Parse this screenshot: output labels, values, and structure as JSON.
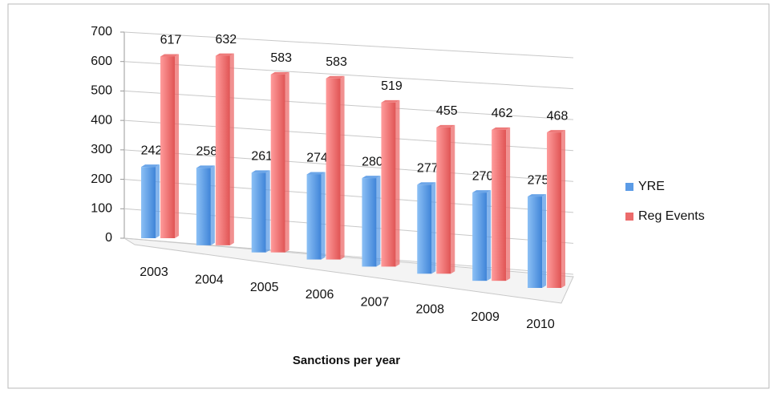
{
  "chart_data": {
    "type": "bar3d",
    "title": "Sanctions per year",
    "categories": [
      "2003",
      "2004",
      "2005",
      "2006",
      "2007",
      "2008",
      "2009",
      "2010"
    ],
    "series": [
      {
        "name": "YRE",
        "color": "#5b9be6",
        "values": [
          242,
          258,
          261,
          274,
          280,
          277,
          270,
          275
        ]
      },
      {
        "name": "Reg Events",
        "color": "#ec6b6b",
        "values": [
          617,
          632,
          583,
          583,
          519,
          455,
          462,
          468
        ]
      }
    ],
    "ylim": [
      0,
      700
    ],
    "yticks": [
      0,
      100,
      200,
      300,
      400,
      500,
      600,
      700
    ],
    "grid": true,
    "legend": "right"
  }
}
